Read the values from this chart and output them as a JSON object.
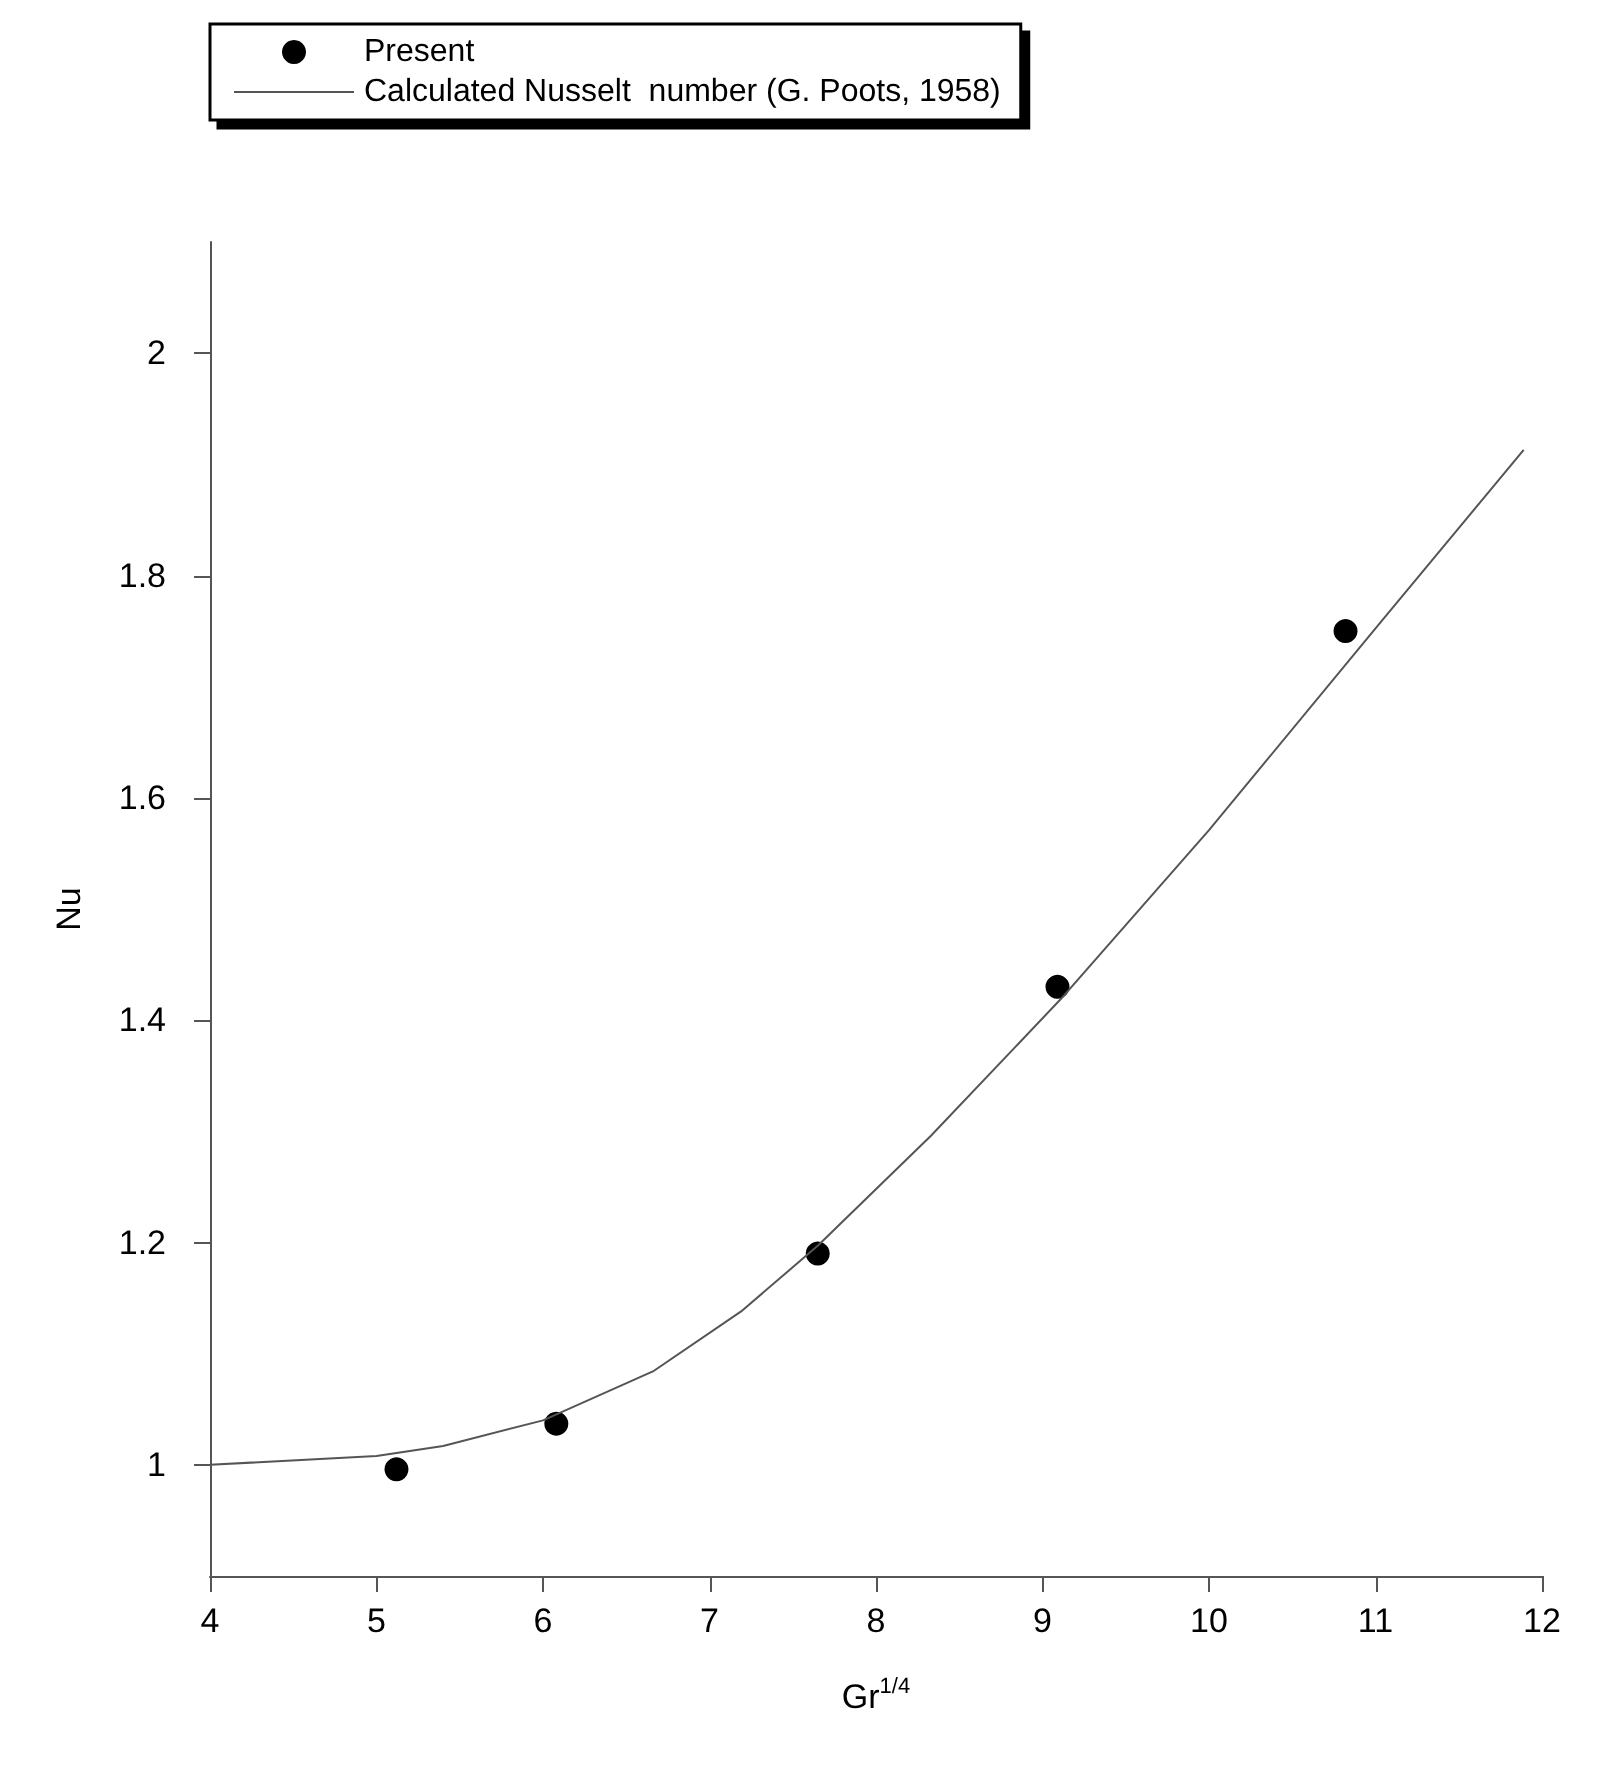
{
  "chart_data": {
    "type": "scatter",
    "xlabel": "Gr$^{1/4}$",
    "ylabel": "Nu",
    "xlim": [
      4,
      12
    ],
    "xticks": [
      4,
      5,
      6,
      7,
      8,
      9,
      10,
      11,
      12
    ],
    "ylim": [
      0.9,
      2.1
    ],
    "yticks": [
      1,
      1.2,
      1.4,
      1.6,
      1.8,
      2
    ],
    "grid": false,
    "legend": "top left",
    "series": [
      {
        "name": "Present",
        "marker": "circle",
        "color": "#000000",
        "x": [
          5.12,
          6.08,
          7.65,
          9.09,
          10.82
        ],
        "values": [
          0.996,
          1.037,
          1.19,
          1.43,
          1.75
        ]
      },
      {
        "name": "Calculated Nusselt  number (G. Poots, 1958)",
        "type": "line",
        "marker": "none",
        "line_style": "solid",
        "color": "#555555",
        "x": [
          4,
          5,
          5.4,
          6,
          6.66,
          7.19,
          7.65,
          8.33,
          9.11,
          10,
          11.02,
          11.89
        ],
        "values": [
          1.0,
          1.008,
          1.017,
          1.04,
          1.084,
          1.138,
          1.197,
          1.296,
          1.419,
          1.571,
          1.756,
          1.913
        ]
      }
    ]
  }
}
